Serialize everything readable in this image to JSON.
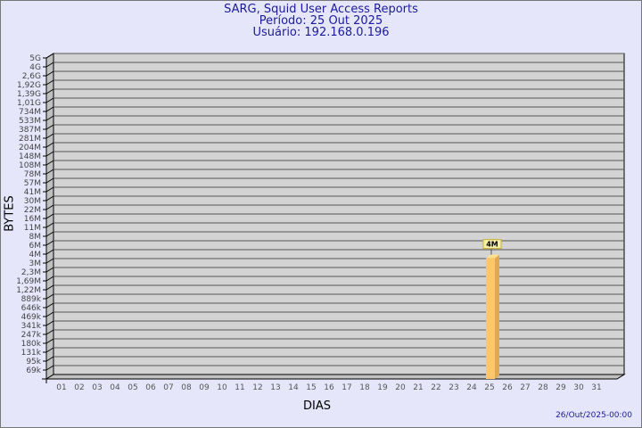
{
  "header": {
    "title": "SARG, Squid User Access Reports",
    "period": "Período: 25 Out 2025",
    "user": "Usuário: 192.168.0.196"
  },
  "footer": {
    "timestamp": "26/Out/2025-00:00"
  },
  "chart_data": {
    "type": "bar",
    "xlabel": "DIAS",
    "ylabel": "BYTES",
    "y_scale": "log",
    "y_ticks": [
      "69k",
      "95k",
      "131k",
      "180k",
      "247k",
      "341k",
      "469k",
      "646k",
      "889k",
      "1,22M",
      "1,69M",
      "2,3M",
      "3M",
      "4M",
      "6M",
      "8M",
      "11M",
      "16M",
      "22M",
      "30M",
      "41M",
      "57M",
      "78M",
      "108M",
      "148M",
      "204M",
      "281M",
      "387M",
      "533M",
      "734M",
      "1,01G",
      "1,39G",
      "1,92G",
      "2,6G",
      "4G",
      "5G"
    ],
    "categories": [
      "01",
      "02",
      "03",
      "04",
      "05",
      "06",
      "07",
      "08",
      "09",
      "10",
      "11",
      "12",
      "13",
      "14",
      "15",
      "16",
      "17",
      "18",
      "19",
      "20",
      "21",
      "22",
      "23",
      "24",
      "25",
      "26",
      "27",
      "28",
      "29",
      "30",
      "31"
    ],
    "values": [
      null,
      null,
      null,
      null,
      null,
      null,
      null,
      null,
      null,
      null,
      null,
      null,
      null,
      null,
      null,
      null,
      null,
      null,
      null,
      null,
      null,
      null,
      null,
      null,
      3500000,
      null,
      null,
      null,
      null,
      null,
      null
    ],
    "data_labels": {
      "25": "4M"
    },
    "grid": true,
    "colors": {
      "bar": "#ffc66b",
      "bar_side": "#e0a850",
      "plot_bg": "#d3d3d3",
      "title": "#1a1a9c",
      "background": "#e6e6fa"
    }
  }
}
